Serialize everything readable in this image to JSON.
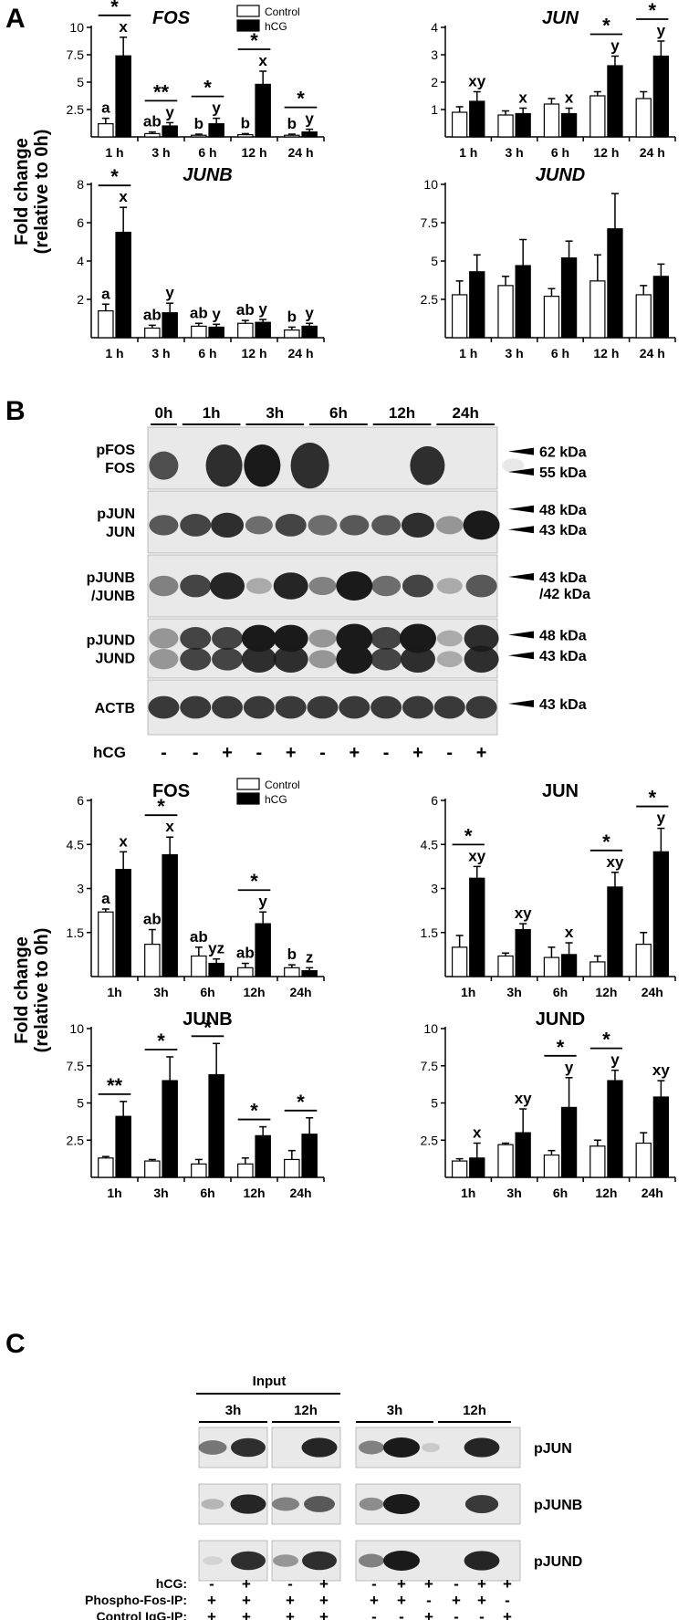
{
  "panels": {
    "A": "A",
    "B": "B",
    "C": "C"
  },
  "y_axis_label": [
    "Fold change",
    "(relative to 0h)"
  ],
  "legend": {
    "control": "Control",
    "hcg": "hCG"
  },
  "colors": {
    "control": "#ffffff",
    "hcg": "#000000",
    "blot_bg": "#e9e9e9",
    "band": "#1a1a1a"
  },
  "chart_data": [
    {
      "type": "bar",
      "title": "FOS",
      "italic": true,
      "group": "A",
      "categories": [
        "1 h",
        "3 h",
        "6 h",
        "12 h",
        "24 h"
      ],
      "series": [
        {
          "name": "Control",
          "values": [
            1.2,
            0.3,
            0.15,
            0.2,
            0.15
          ],
          "errors": [
            0.5,
            0.15,
            0.1,
            0.1,
            0.1
          ]
        },
        {
          "name": "hCG",
          "values": [
            7.4,
            1.0,
            1.2,
            4.8,
            0.45
          ],
          "errors": [
            1.7,
            0.3,
            0.5,
            1.2,
            0.25
          ]
        }
      ],
      "yticks": [
        "2.5",
        "5",
        "7.5",
        "10"
      ],
      "ytick_values": [
        2.5,
        5,
        7.5,
        10
      ],
      "ylim": [
        0,
        10
      ],
      "letters": {
        "control": [
          "a",
          "ab",
          "b",
          "b",
          "b"
        ],
        "hcg": [
          "x",
          "y",
          "y",
          "x",
          "y"
        ]
      },
      "sig": [
        "*",
        "**",
        "*",
        "*",
        "*"
      ],
      "legend": true
    },
    {
      "type": "bar",
      "title": "JUN",
      "italic": true,
      "group": "A",
      "categories": [
        "1 h",
        "3 h",
        "6 h",
        "12 h",
        "24 h"
      ],
      "series": [
        {
          "name": "Control",
          "values": [
            0.9,
            0.8,
            1.2,
            1.5,
            1.4
          ],
          "errors": [
            0.2,
            0.15,
            0.2,
            0.15,
            0.25
          ]
        },
        {
          "name": "hCG",
          "values": [
            1.3,
            0.85,
            0.85,
            2.6,
            2.95
          ],
          "errors": [
            0.35,
            0.2,
            0.2,
            0.35,
            0.55
          ]
        }
      ],
      "yticks": [
        "1",
        "2",
        "3",
        "4"
      ],
      "ytick_values": [
        1,
        2,
        3,
        4
      ],
      "ylim": [
        0,
        4
      ],
      "letters": {
        "control": [
          "",
          "",
          "",
          "",
          ""
        ],
        "hcg": [
          "xy",
          "x",
          "x",
          "y",
          "y"
        ]
      },
      "sig": [
        "",
        "",
        "",
        "*",
        "*"
      ],
      "legend": false
    },
    {
      "type": "bar",
      "title": "JUNB",
      "italic": true,
      "group": "A",
      "categories": [
        "1 h",
        "3 h",
        "6 h",
        "12 h",
        "24 h"
      ],
      "series": [
        {
          "name": "Control",
          "values": [
            1.4,
            0.5,
            0.6,
            0.75,
            0.4
          ],
          "errors": [
            0.35,
            0.15,
            0.15,
            0.15,
            0.15
          ]
        },
        {
          "name": "hCG",
          "values": [
            5.5,
            1.3,
            0.55,
            0.8,
            0.6
          ],
          "errors": [
            1.3,
            0.5,
            0.15,
            0.15,
            0.15
          ]
        }
      ],
      "yticks": [
        "2",
        "4",
        "6",
        "8"
      ],
      "ytick_values": [
        2,
        4,
        6,
        8
      ],
      "ylim": [
        0,
        8
      ],
      "letters": {
        "control": [
          "a",
          "ab",
          "ab",
          "ab",
          "b"
        ],
        "hcg": [
          "x",
          "y",
          "y",
          "y",
          "y"
        ]
      },
      "sig": [
        "*",
        "",
        "",
        "",
        ""
      ],
      "legend": false
    },
    {
      "type": "bar",
      "title": "JUND",
      "italic": true,
      "group": "A",
      "categories": [
        "1 h",
        "3 h",
        "6 h",
        "12 h",
        "24 h"
      ],
      "series": [
        {
          "name": "Control",
          "values": [
            2.8,
            3.4,
            2.7,
            3.7,
            2.8
          ],
          "errors": [
            0.9,
            0.6,
            0.5,
            1.7,
            0.6
          ]
        },
        {
          "name": "hCG",
          "values": [
            4.3,
            4.7,
            5.2,
            7.1,
            4.0
          ],
          "errors": [
            1.1,
            1.7,
            1.1,
            2.3,
            0.8
          ]
        }
      ],
      "yticks": [
        "2.5",
        "5",
        "7.5",
        "10"
      ],
      "ytick_values": [
        2.5,
        5,
        7.5,
        10
      ],
      "ylim": [
        0,
        10
      ],
      "letters": {
        "control": [
          "",
          "",
          "",
          "",
          ""
        ],
        "hcg": [
          "",
          "",
          "",
          "",
          ""
        ]
      },
      "sig": [
        "",
        "",
        "",
        "",
        ""
      ],
      "legend": false
    },
    {
      "type": "bar",
      "title": "FOS",
      "italic": false,
      "group": "B",
      "categories": [
        "1h",
        "3h",
        "6h",
        "12h",
        "24h"
      ],
      "series": [
        {
          "name": "Control",
          "values": [
            2.2,
            1.1,
            0.7,
            0.3,
            0.3
          ],
          "errors": [
            0.1,
            0.5,
            0.3,
            0.15,
            0.1
          ]
        },
        {
          "name": "hCG",
          "values": [
            3.65,
            4.15,
            0.45,
            1.8,
            0.2
          ],
          "errors": [
            0.6,
            0.6,
            0.15,
            0.4,
            0.1
          ]
        }
      ],
      "yticks": [
        "1.5",
        "3",
        "4.5",
        "6"
      ],
      "ytick_values": [
        1.5,
        3,
        4.5,
        6
      ],
      "ylim": [
        0,
        6
      ],
      "letters": {
        "control": [
          "a",
          "ab",
          "ab",
          "ab",
          "b"
        ],
        "hcg": [
          "x",
          "x",
          "yz",
          "y",
          "z"
        ]
      },
      "sig": [
        "",
        "*",
        "",
        "*",
        ""
      ],
      "legend": true
    },
    {
      "type": "bar",
      "title": "JUN",
      "italic": false,
      "group": "B",
      "categories": [
        "1h",
        "3h",
        "6h",
        "12h",
        "24h"
      ],
      "series": [
        {
          "name": "Control",
          "values": [
            1.0,
            0.7,
            0.65,
            0.5,
            1.1
          ],
          "errors": [
            0.4,
            0.1,
            0.35,
            0.2,
            0.4
          ]
        },
        {
          "name": "hCG",
          "values": [
            3.35,
            1.6,
            0.75,
            3.05,
            4.25
          ],
          "errors": [
            0.4,
            0.2,
            0.4,
            0.5,
            0.8
          ]
        }
      ],
      "yticks": [
        "1.5",
        "3",
        "4.5",
        "6"
      ],
      "ytick_values": [
        1.5,
        3,
        4.5,
        6
      ],
      "ylim": [
        0,
        6
      ],
      "letters": {
        "control": [
          "",
          "",
          "",
          "",
          ""
        ],
        "hcg": [
          "xy",
          "xy",
          "x",
          "xy",
          "y"
        ]
      },
      "sig": [
        "*",
        "",
        "",
        "*",
        "*"
      ],
      "legend": false
    },
    {
      "type": "bar",
      "title": "JUNB",
      "italic": false,
      "group": "B",
      "categories": [
        "1h",
        "3h",
        "6h",
        "12h",
        "24h"
      ],
      "series": [
        {
          "name": "Control",
          "values": [
            1.3,
            1.1,
            0.9,
            0.9,
            1.2
          ],
          "errors": [
            0.1,
            0.1,
            0.3,
            0.4,
            0.6
          ]
        },
        {
          "name": "hCG",
          "values": [
            4.1,
            6.5,
            6.9,
            2.8,
            2.9
          ],
          "errors": [
            1.0,
            1.6,
            2.1,
            0.6,
            1.1
          ]
        }
      ],
      "yticks": [
        "2.5",
        "5",
        "7.5",
        "10"
      ],
      "ytick_values": [
        2.5,
        5,
        7.5,
        10
      ],
      "ylim": [
        0,
        10
      ],
      "letters": {
        "control": [
          "",
          "",
          "",
          "",
          ""
        ],
        "hcg": [
          "",
          "",
          "",
          "",
          ""
        ]
      },
      "sig": [
        "**",
        "*",
        "*",
        "*",
        "*"
      ],
      "legend": false
    },
    {
      "type": "bar",
      "title": "JUND",
      "italic": false,
      "group": "B",
      "categories": [
        "1h",
        "3h",
        "6h",
        "12h",
        "24h"
      ],
      "series": [
        {
          "name": "Control",
          "values": [
            1.1,
            2.2,
            1.5,
            2.1,
            2.3
          ],
          "errors": [
            0.15,
            0.1,
            0.3,
            0.4,
            0.7
          ]
        },
        {
          "name": "hCG",
          "values": [
            1.3,
            3.0,
            4.7,
            6.5,
            5.4
          ],
          "errors": [
            1.0,
            1.6,
            2.0,
            0.7,
            1.1
          ]
        }
      ],
      "yticks": [
        "2.5",
        "5",
        "7.5",
        "10"
      ],
      "ytick_values": [
        2.5,
        5,
        7.5,
        10
      ],
      "ylim": [
        0,
        10
      ],
      "letters": {
        "control": [
          "",
          "",
          "",
          "",
          ""
        ],
        "hcg": [
          "x",
          "xy",
          "y",
          "y",
          "xy"
        ]
      },
      "sig": [
        "",
        "",
        "*",
        "*",
        ""
      ],
      "legend": false
    }
  ],
  "blot_b": {
    "time_headers": [
      "0h",
      "1h",
      "3h",
      "6h",
      "12h",
      "24h"
    ],
    "rows": [
      {
        "labels": [
          "pFOS",
          "FOS"
        ],
        "kda": [
          "62 kDa",
          "55 kDa"
        ],
        "bands": [
          {
            "x": [
              0.5,
              2.4,
              3.6,
              5.1,
              8.8,
              11.5
            ],
            "intensity": [
              0.75,
              0.9,
              1.0,
              0.9,
              0.9,
              0.1
            ],
            "size": [
              0.6,
              1.0,
              1.0,
              1.1,
              0.9,
              0.2
            ]
          }
        ]
      },
      {
        "labels": [
          "pJUN",
          "JUN"
        ],
        "kda": [
          "48 kDa",
          "43 kDa"
        ],
        "bands": [
          {
            "x": [
              0.5,
              1.5,
              2.5,
              3.5,
              4.5,
              5.5,
              6.5,
              7.5,
              8.5,
              9.5,
              10.5
            ],
            "intensity": [
              0.7,
              0.8,
              0.9,
              0.6,
              0.8,
              0.6,
              0.7,
              0.7,
              0.9,
              0.4,
              1.0
            ],
            "size": [
              0.6,
              0.7,
              0.8,
              0.5,
              0.7,
              0.6,
              0.6,
              0.6,
              0.8,
              0.5,
              1.0
            ]
          }
        ]
      },
      {
        "labels": [
          "pJUNB",
          "/JUNB"
        ],
        "kda": [
          "43 kDa",
          "/42 kDa"
        ],
        "bands": [
          {
            "x": [
              0.5,
              1.5,
              2.5,
              3.5,
              4.5,
              5.5,
              6.5,
              7.5,
              8.5,
              9.5,
              10.5
            ],
            "intensity": [
              0.5,
              0.8,
              0.95,
              0.3,
              0.95,
              0.5,
              1.0,
              0.6,
              0.8,
              0.3,
              0.7
            ],
            "size": [
              0.6,
              0.7,
              0.9,
              0.4,
              0.9,
              0.5,
              1.0,
              0.6,
              0.7,
              0.4,
              0.7
            ]
          }
        ]
      },
      {
        "labels": [
          "pJUND",
          "JUND"
        ],
        "kda": [
          "48 kDa",
          "43 kDa"
        ],
        "bands": [
          {
            "x": [
              0.5,
              1.5,
              2.5,
              3.5,
              4.5,
              5.5,
              6.5,
              7.5,
              8.5,
              9.5,
              10.5
            ],
            "intensity": [
              0.4,
              0.8,
              0.8,
              1.0,
              1.0,
              0.4,
              1.0,
              0.8,
              1.0,
              0.3,
              0.9
            ],
            "size": [
              0.6,
              0.7,
              0.7,
              0.9,
              0.9,
              0.5,
              1.0,
              0.7,
              1.0,
              0.4,
              0.9
            ]
          },
          {
            "x": [
              0.5,
              1.5,
              2.5,
              3.5,
              4.5,
              5.5,
              6.5,
              7.5,
              8.5,
              9.5,
              10.5
            ],
            "intensity": [
              0.4,
              0.8,
              0.8,
              0.9,
              0.9,
              0.4,
              1.0,
              0.8,
              0.9,
              0.3,
              0.9
            ],
            "size": [
              0.6,
              0.7,
              0.7,
              0.9,
              0.9,
              0.5,
              1.0,
              0.7,
              0.9,
              0.4,
              0.9
            ]
          }
        ]
      },
      {
        "labels": [
          "ACTB"
        ],
        "kda": [
          "43 kDa"
        ],
        "bands": [
          {
            "x": [
              0.5,
              1.5,
              2.5,
              3.5,
              4.5,
              5.5,
              6.5,
              7.5,
              8.5,
              9.5,
              10.5
            ],
            "intensity": [
              0.85,
              0.85,
              0.85,
              0.85,
              0.85,
              0.85,
              0.85,
              0.85,
              0.85,
              0.85,
              0.85
            ],
            "size": [
              0.7,
              0.7,
              0.7,
              0.7,
              0.7,
              0.7,
              0.7,
              0.7,
              0.7,
              0.7,
              0.7
            ]
          }
        ]
      }
    ],
    "hcg_label": "hCG",
    "hcg_signs": [
      "-",
      "-",
      "+",
      "-",
      "+",
      "-",
      "+",
      "-",
      "+",
      "-",
      "+"
    ]
  },
  "blot_c": {
    "input_label": "Input",
    "groups": [
      "3h",
      "12h",
      "3h",
      "12h"
    ],
    "row_labels": [
      "pJUN",
      "pJUNB",
      "pJUND"
    ],
    "treat_rows": [
      {
        "label": "hCG:",
        "signs": [
          "-",
          "+",
          "-",
          "+",
          "-",
          "+",
          "+",
          "-",
          "+",
          "+"
        ]
      },
      {
        "label": "Phospho-Fos-IP:",
        "signs": [
          "+",
          "+",
          "+",
          "+",
          "+",
          "+",
          "-",
          "+",
          "+",
          "-"
        ]
      },
      {
        "label": "Control IgG-IP:",
        "signs": [
          "+",
          "+",
          "+",
          "+",
          "-",
          "-",
          "+",
          "-",
          "-",
          "+"
        ]
      }
    ],
    "bands": [
      {
        "input": [
          0.55,
          0.9,
          0.0,
          0.95
        ],
        "ip": [
          0.5,
          1.0,
          0.15,
          0.0,
          0.95,
          0.0
        ]
      },
      {
        "input": [
          0.25,
          0.95,
          0.5,
          0.7
        ],
        "ip": [
          0.45,
          1.0,
          0.0,
          0.0,
          0.85,
          0.0
        ]
      },
      {
        "input": [
          0.1,
          0.9,
          0.4,
          0.9
        ],
        "ip": [
          0.5,
          1.0,
          0.0,
          0.0,
          0.95,
          0.0
        ]
      }
    ]
  }
}
